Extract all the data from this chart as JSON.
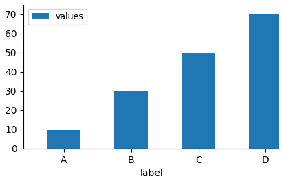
{
  "categories": [
    "A",
    "B",
    "C",
    "D"
  ],
  "values": [
    10,
    30,
    50,
    70
  ],
  "bar_color": "#2077b4",
  "xlabel": "label",
  "legend_label": "values",
  "ylim": [
    0,
    75
  ],
  "yticks": [
    0,
    10,
    20,
    30,
    40,
    50,
    60,
    70
  ],
  "background_color": "#ffffff",
  "figsize": [
    4.13,
    2.67
  ],
  "dpi": 100,
  "bar_width": 0.5
}
